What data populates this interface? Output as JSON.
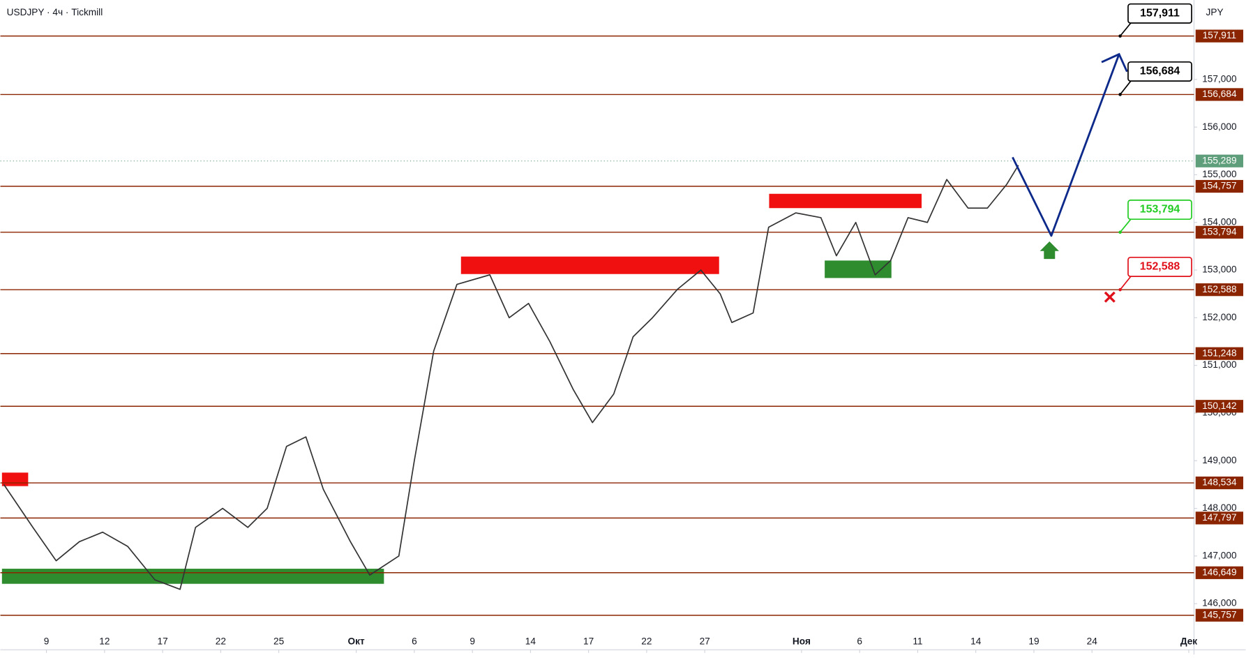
{
  "chart_data": {
    "type": "line",
    "title": "USDJPY · 4ч · Tickmill",
    "currency": "JPY",
    "x": [
      -2.2,
      -0.7,
      0.5,
      1.7,
      2.9,
      4.2,
      5.6,
      6.9,
      7.7,
      9.1,
      10.4,
      11.4,
      12.4,
      13.4,
      14.3,
      15.7,
      16.7,
      18.2,
      19.0,
      20.0,
      21.2,
      22.9,
      23.9,
      24.9,
      26.0,
      27.2,
      28.2,
      29.3,
      30.3,
      31.3,
      32.6,
      33.8,
      34.8,
      35.4,
      36.5,
      37.3,
      38.7,
      40.0,
      40.8,
      41.8,
      42.8,
      43.6,
      44.5,
      45.5,
      46.5,
      47.6,
      48.6,
      49.6,
      50.2
    ],
    "series": [
      {
        "color": "#333333",
        "values": [
          148.5,
          147.6,
          146.9,
          147.3,
          147.5,
          147.2,
          146.5,
          146.3,
          147.6,
          148.0,
          147.6,
          148.0,
          149.3,
          149.5,
          148.4,
          147.3,
          146.6,
          147.0,
          149.0,
          151.3,
          152.7,
          152.9,
          152.0,
          152.3,
          151.5,
          150.5,
          149.8,
          150.4,
          151.6,
          152.0,
          152.6,
          153.0,
          152.5,
          151.9,
          152.1,
          153.9,
          154.2,
          154.1,
          153.3,
          154.0,
          152.9,
          153.2,
          154.1,
          154.0,
          154.9,
          154.3,
          154.3,
          154.8,
          155.2
        ]
      }
    ],
    "projection": {
      "color": "#0d2a8a",
      "x": [
        49.9,
        51.9,
        55.4
      ],
      "values": [
        155.367,
        153.72,
        157.53
      ]
    },
    "xlim": [
      -2.38,
      59.27
    ],
    "ylim": [
      145.033,
      158.667
    ],
    "xticks": [
      {
        "value": 0,
        "label": "9"
      },
      {
        "value": 3,
        "label": "12"
      },
      {
        "value": 6,
        "label": "17"
      },
      {
        "value": 9,
        "label": "22"
      },
      {
        "value": 12,
        "label": "25"
      },
      {
        "value": 16,
        "label": "Окт"
      },
      {
        "value": 19,
        "label": "6"
      },
      {
        "value": 22,
        "label": "9"
      },
      {
        "value": 25,
        "label": "14"
      },
      {
        "value": 28,
        "label": "17"
      },
      {
        "value": 31,
        "label": "22"
      },
      {
        "value": 34,
        "label": "27"
      },
      {
        "value": 39,
        "label": "Ноя"
      },
      {
        "value": 42,
        "label": "6"
      },
      {
        "value": 45,
        "label": "11"
      },
      {
        "value": 48,
        "label": "14"
      },
      {
        "value": 51,
        "label": "19"
      },
      {
        "value": 54,
        "label": "24"
      },
      {
        "value": 59,
        "label": "Дек"
      }
    ],
    "yticks": [
      {
        "value": 146,
        "label": "146,000"
      },
      {
        "value": 147,
        "label": "147,000"
      },
      {
        "value": 148,
        "label": "148,000"
      },
      {
        "value": 149,
        "label": "149,000"
      },
      {
        "value": 150,
        "label": "150,000"
      },
      {
        "value": 151,
        "label": "151,000"
      },
      {
        "value": 152,
        "label": "152,000"
      },
      {
        "value": 153,
        "label": "153,000"
      },
      {
        "value": 154,
        "label": "154,000"
      },
      {
        "value": 155,
        "label": "155,000"
      },
      {
        "value": 156,
        "label": "156,000"
      },
      {
        "value": 157,
        "label": "157,000"
      }
    ],
    "levels": [
      {
        "value": 157.911,
        "label": "157,911"
      },
      {
        "value": 156.684,
        "label": "156,684"
      },
      {
        "value": 154.757,
        "label": "154,757"
      },
      {
        "value": 153.794,
        "label": "153,794"
      },
      {
        "value": 152.588,
        "label": "152,588"
      },
      {
        "value": 151.248,
        "label": "151,248"
      },
      {
        "value": 150.142,
        "label": "150,142"
      },
      {
        "value": 148.534,
        "label": "148,534"
      },
      {
        "value": 147.797,
        "label": "147,797"
      },
      {
        "value": 146.649,
        "label": "146,649"
      },
      {
        "value": 145.757,
        "label": "145,757"
      }
    ],
    "level_color": "#8b2500",
    "current_price": {
      "value": 155.289,
      "label": "155,289",
      "color": "#5f9e7a"
    },
    "callouts": [
      {
        "level": 0,
        "color": "#000000"
      },
      {
        "level": 1,
        "color": "#000000"
      },
      {
        "level": 3,
        "color": "#22cc22"
      },
      {
        "level": 4,
        "color": "#e0101a"
      }
    ]
  }
}
